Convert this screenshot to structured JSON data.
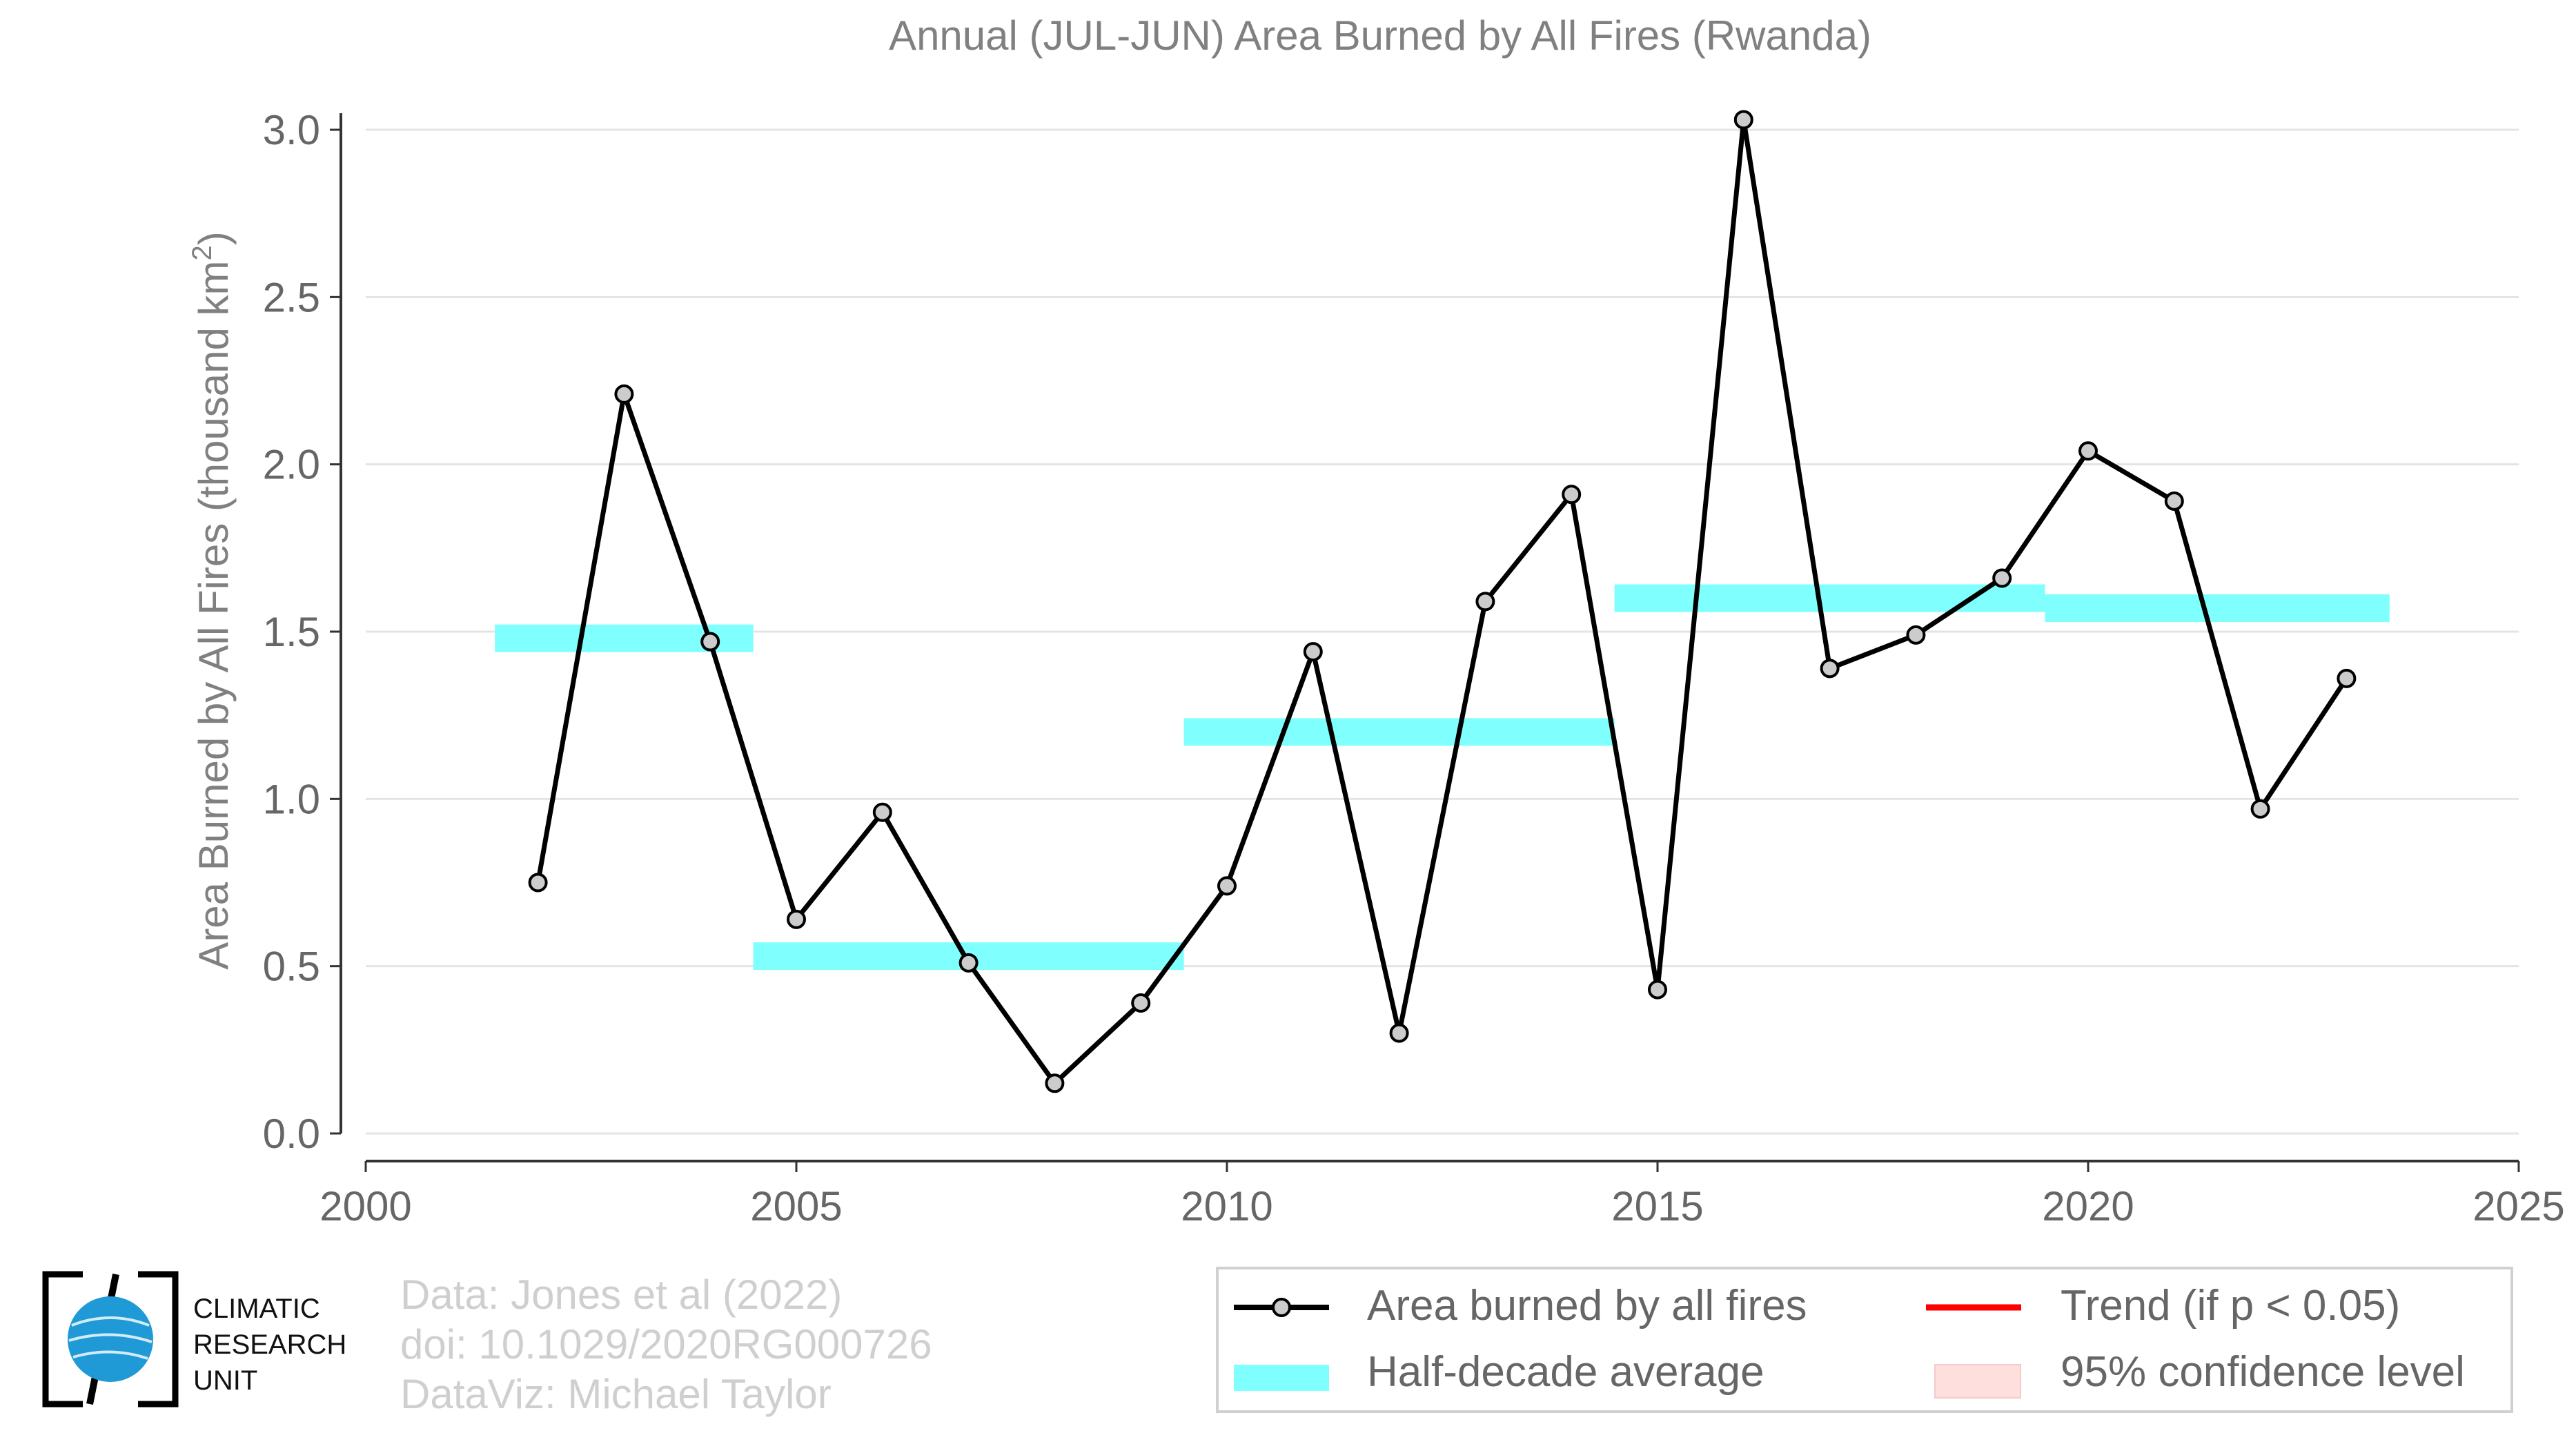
{
  "chart_data": {
    "type": "line",
    "title": "Annual (JUL-JUN) Area Burned by All Fires (Rwanda)",
    "ylabel": "Area Burned by All Fires (thousand km",
    "ylabel_sup": "2",
    "ylabel_close": ")",
    "xlabel": "",
    "xlim": [
      2000,
      2025
    ],
    "ylim": [
      0.0,
      3.0
    ],
    "x_ticks": [
      2000,
      2005,
      2010,
      2015,
      2020,
      2025
    ],
    "x_tick_labels": [
      "2000",
      "2005",
      "2010",
      "2015",
      "2020",
      "2025"
    ],
    "y_ticks": [
      0.0,
      0.5,
      1.0,
      1.5,
      2.0,
      2.5,
      3.0
    ],
    "y_tick_labels": [
      "0.0",
      "0.5",
      "1.0",
      "1.5",
      "2.0",
      "2.5",
      "3.0"
    ],
    "grid": "horizontal",
    "legend_position": "bottom-right",
    "series": [
      {
        "name": "Area burned by all fires",
        "type": "line-markers",
        "color": "#000000",
        "marker_fill": "#cccccc",
        "x": [
          2002,
          2003,
          2004,
          2005,
          2006,
          2007,
          2008,
          2009,
          2010,
          2011,
          2012,
          2013,
          2014,
          2015,
          2016,
          2017,
          2018,
          2019,
          2020,
          2021,
          2022,
          2023
        ],
        "y": [
          0.75,
          2.21,
          1.47,
          0.64,
          0.96,
          0.51,
          0.15,
          0.39,
          0.74,
          1.44,
          0.3,
          1.59,
          1.91,
          0.43,
          3.03,
          1.39,
          1.49,
          1.66,
          2.04,
          1.89,
          0.97,
          1.36
        ]
      },
      {
        "name": "Half-decade average",
        "type": "step-band",
        "color": "#80ffff",
        "segments": [
          {
            "x0": 2001.5,
            "x1": 2004.5,
            "y": 1.48
          },
          {
            "x0": 2004.5,
            "x1": 2009.5,
            "y": 0.53
          },
          {
            "x0": 2009.5,
            "x1": 2014.5,
            "y": 1.2
          },
          {
            "x0": 2014.5,
            "x1": 2019.5,
            "y": 1.6
          },
          {
            "x0": 2019.5,
            "x1": 2023.5,
            "y": 1.57
          }
        ]
      },
      {
        "name": "Trend (if p < 0.05)",
        "type": "line",
        "color": "#ff0000",
        "x": [],
        "y": []
      },
      {
        "name": "95% confidence level",
        "type": "band",
        "color": "#ffdede",
        "x": [],
        "y": []
      }
    ]
  },
  "legend": {
    "items": [
      "Area burned by all fires",
      "Trend (if p < 0.05)",
      "Half-decade average",
      "95% confidence level"
    ]
  },
  "credits": {
    "line1": "Data: Jones et al (2022)",
    "line2": "doi: 10.1029/2020RG000726",
    "line3": "DataViz: Michael Taylor"
  },
  "logo": {
    "line1": "CLIMATIC",
    "line2": "RESEARCH",
    "line3": "UNIT",
    "globe_color": "#1f9ad6"
  }
}
